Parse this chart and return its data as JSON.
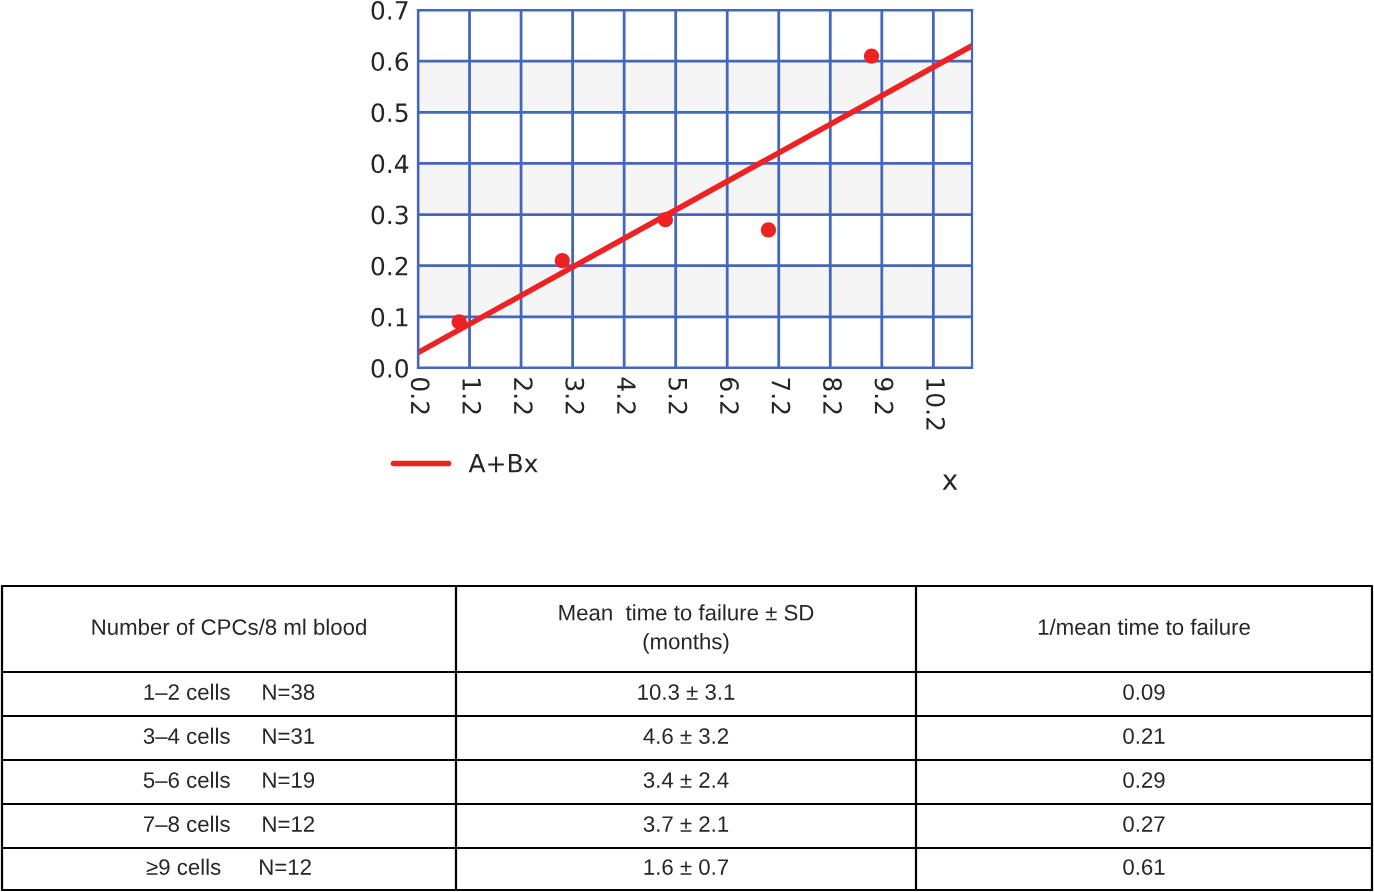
{
  "chart_data": {
    "type": "scatter",
    "xlabel": "x",
    "xlim": [
      0.2,
      10.95
    ],
    "ylim": [
      0,
      0.7
    ],
    "xticks": [
      0.2,
      1.2,
      2.2,
      3.2,
      4.2,
      5.2,
      6.2,
      7.2,
      8.2,
      9.2,
      10.2
    ],
    "yticks": [
      {
        "value": 0,
        "label": "0.0"
      },
      0.1,
      0.2,
      0.3,
      0.4,
      0.5,
      0.6,
      0.7
    ],
    "grid": true,
    "legend": "bottom left",
    "marker": "circle",
    "bands": [
      {
        "axis": "y",
        "from": 0.1,
        "to": 0.2,
        "color": "#f5f5f5"
      },
      {
        "axis": "y",
        "from": 0.3,
        "to": 0.4,
        "color": "#f5f5f5"
      },
      {
        "axis": "y",
        "from": 0.5,
        "to": 0.6,
        "color": "#f5f5f5"
      }
    ],
    "series": [
      {
        "color": "#ee2222",
        "x": [
          1.0,
          3.0,
          5.0,
          7.0,
          9.0
        ],
        "values": [
          0.09,
          0.21,
          0.29,
          0.27,
          0.61
        ]
      },
      {
        "type": "line",
        "name": "A+Bx",
        "color": "#ee2222",
        "x": [
          0.2,
          10.95
        ],
        "values": [
          0.03,
          0.63
        ],
        "marker": "none",
        "line_style": "solid"
      }
    ],
    "annotations": [
      "Number of CPCs/8 ml blood",
      "Mean  time to failure ± SD\n(months)",
      "1/mean time to failure",
      "1–2 cells     N=38",
      "10.3 ± 3.1",
      "0.09",
      "3–4 cells     N=31",
      "4.6 ± 3.2",
      "0.21",
      "5–6 cells     N=19",
      "3.4 ± 2.4",
      "0.29",
      "7–8 cells     N=12",
      "3.7 ± 2.1",
      "0.27",
      "≥9 cells      N=12",
      "1.6 ± 0.7",
      "0.61"
    ]
  }
}
